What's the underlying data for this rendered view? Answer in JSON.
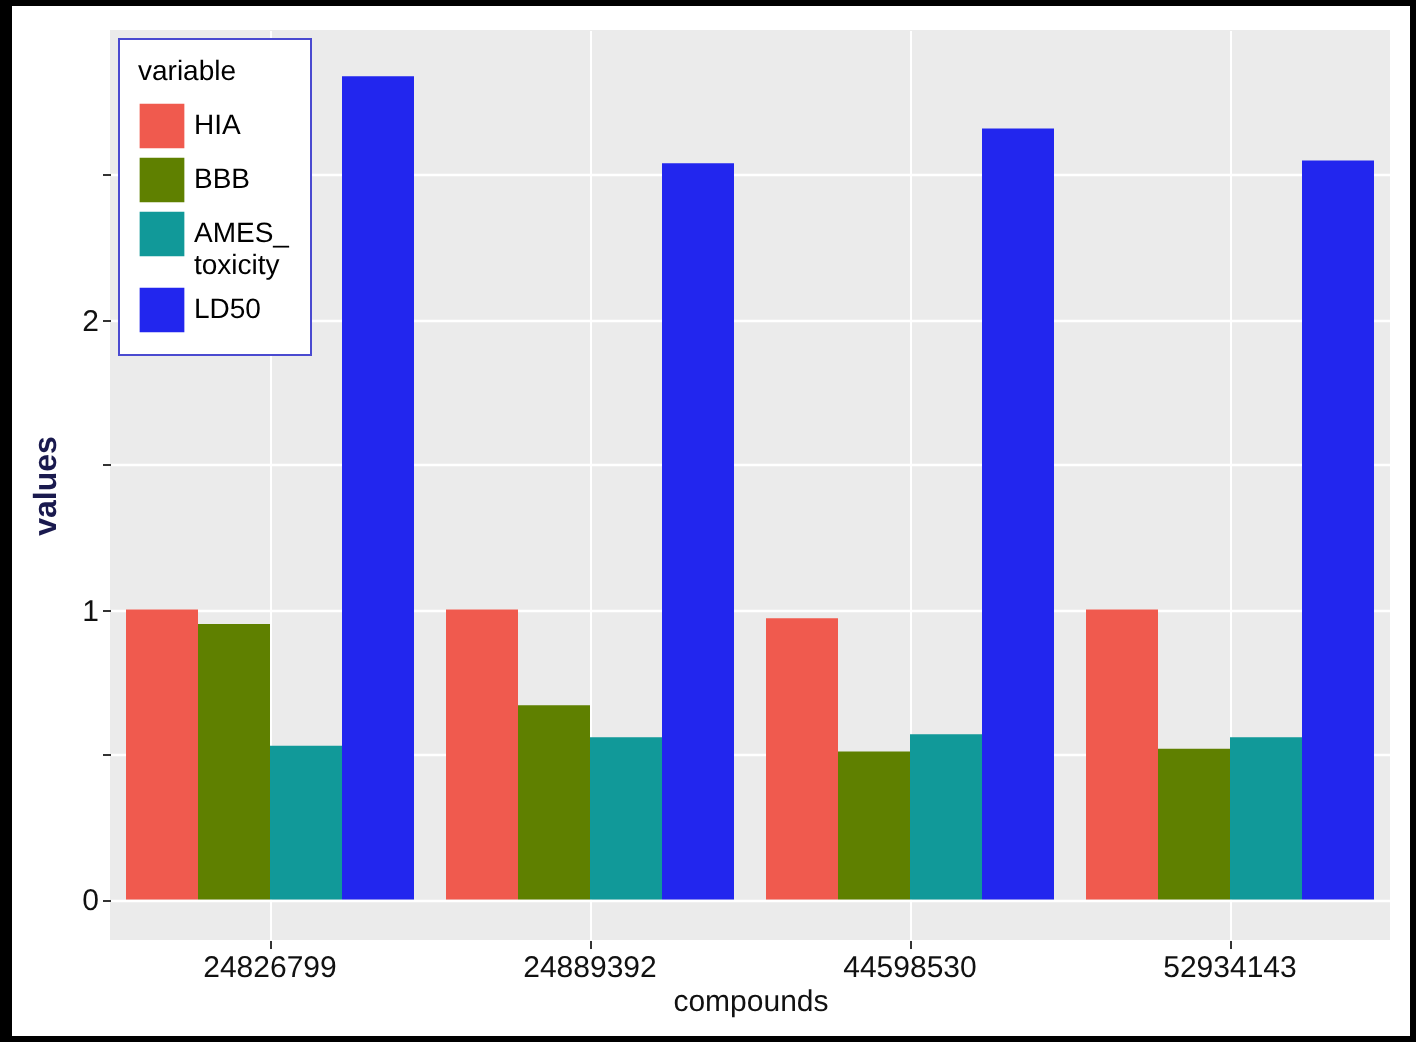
{
  "chart_data": {
    "type": "bar",
    "xlabel": "compounds",
    "ylabel": "values",
    "legend_title": "variable",
    "categories": [
      "24826799",
      "24889392",
      "44598530",
      "52934143"
    ],
    "series": [
      {
        "name": "HIA",
        "color": "#f05a4e",
        "values": [
          1.0,
          1.0,
          0.97,
          1.0
        ]
      },
      {
        "name": "BBB",
        "color": "#5f8000",
        "values": [
          0.95,
          0.67,
          0.51,
          0.52
        ]
      },
      {
        "name": "AMES_toxicity",
        "color": "#119999",
        "values": [
          0.53,
          0.56,
          0.57,
          0.56
        ]
      },
      {
        "name": "LD50",
        "color": "#2226ee",
        "values": [
          2.84,
          2.54,
          2.66,
          2.55
        ]
      }
    ],
    "ylim": [
      -0.14,
      3.0
    ],
    "yticks": [
      0,
      {
        "value": 0.5,
        "label": null
      },
      1,
      {
        "value": 1.5,
        "label": null
      },
      2,
      {
        "value": 2.5,
        "label": null
      }
    ],
    "grid": true,
    "legend": "top left"
  }
}
